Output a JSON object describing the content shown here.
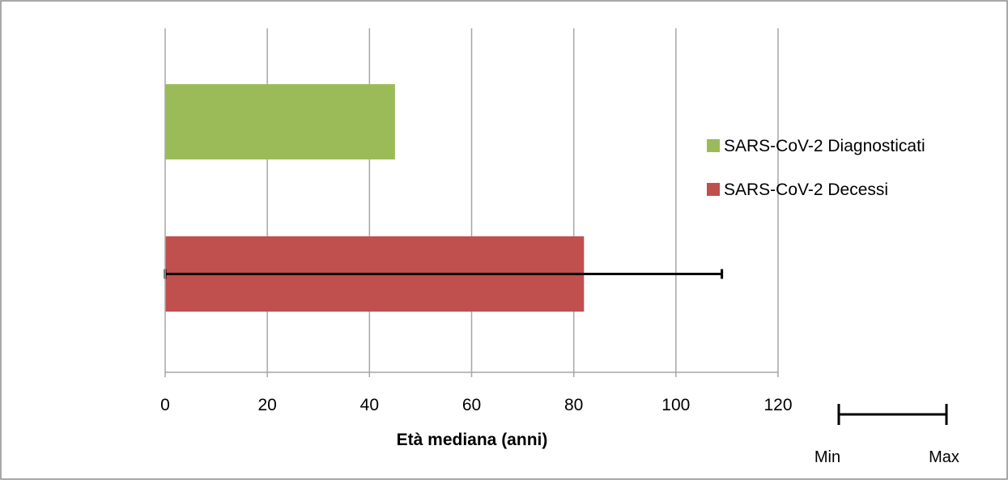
{
  "chart_data": {
    "type": "bar",
    "orientation": "horizontal",
    "categories": [
      "SARS-CoV-2 Diagnosticati",
      "SARS-CoV-2 Decessi"
    ],
    "series": [
      {
        "name": "SARS-CoV-2 Diagnosticati",
        "value": 45,
        "color": "#9BBB59"
      },
      {
        "name": "SARS-CoV-2 Decessi",
        "value": 82,
        "color": "#C0504D",
        "error_range": [
          0,
          109
        ]
      }
    ],
    "xlabel": "Età mediana (anni)",
    "xlim": [
      0,
      120
    ],
    "xticks": [
      0,
      20,
      40,
      60,
      80,
      100,
      120
    ],
    "grid": true,
    "legend_position": "right",
    "error_bar_key": {
      "min_label": "Min",
      "max_label": "Max"
    }
  }
}
